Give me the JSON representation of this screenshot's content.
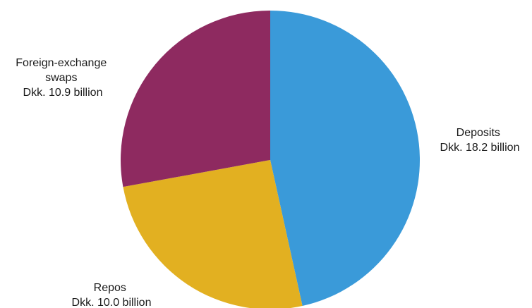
{
  "chart_data": {
    "type": "pie",
    "unit": "Dkk. billion",
    "slices": [
      {
        "category": "Deposits",
        "value": 18.2,
        "color": "#3a9ad9",
        "label_lines": [
          "Deposits",
          "Dkk. 18.2 billion"
        ]
      },
      {
        "category": "Repos",
        "value": 10.0,
        "color": "#e2b021",
        "label_lines": [
          "Repos",
          "Dkk. 10.0 billion"
        ]
      },
      {
        "category": "Foreign-exchange swaps",
        "value": 10.9,
        "color": "#8e2a60",
        "label_lines": [
          "Foreign-exchange",
          "swaps",
          "Dkk. 10.9 billion"
        ]
      }
    ],
    "start": "12 o'clock",
    "direction": "clockwise",
    "legend": "none"
  }
}
